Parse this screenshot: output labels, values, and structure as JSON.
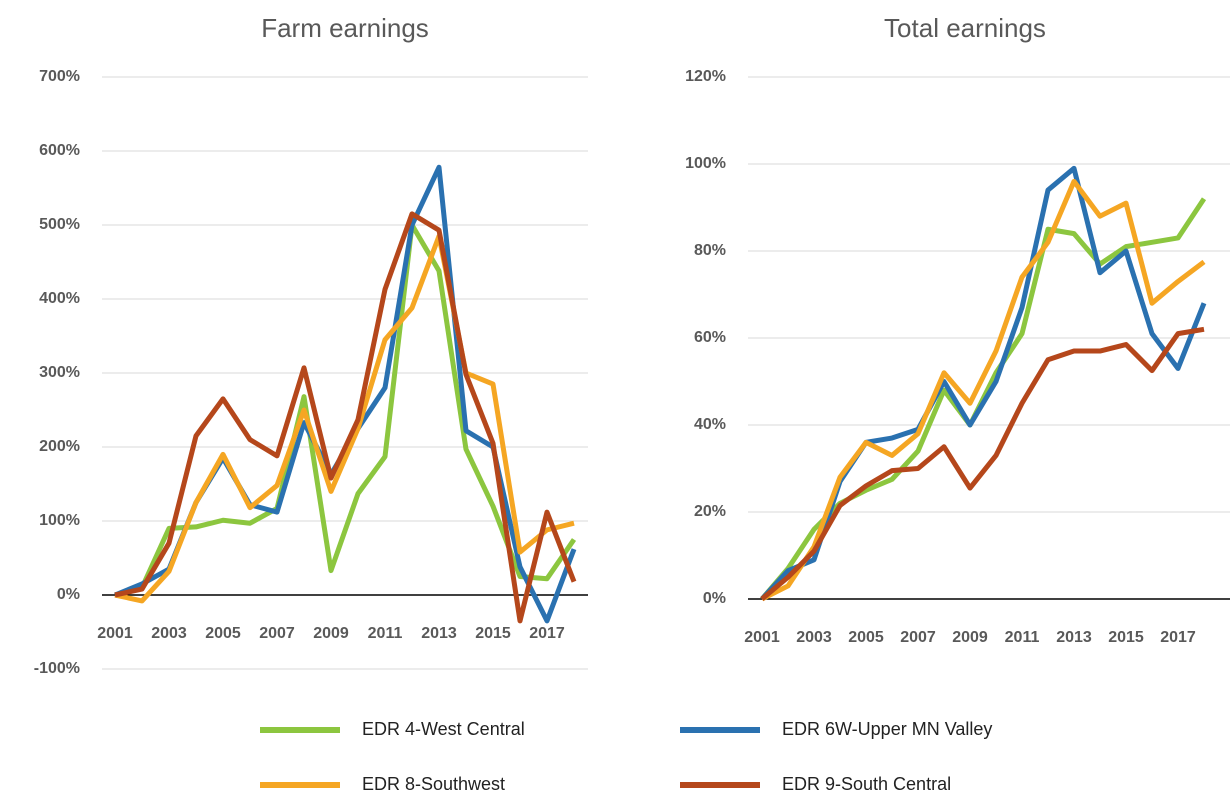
{
  "chart_data": [
    {
      "type": "line",
      "title": "Farm earnings",
      "categories": [
        2001,
        null,
        2003,
        null,
        2005,
        null,
        2007,
        null,
        2009,
        null,
        2011,
        null,
        2013,
        null,
        2015,
        null,
        2017,
        null
      ],
      "ylim": [
        -100,
        700
      ],
      "yticks": [
        {
          "value": -100,
          "label": "-100%"
        },
        {
          "value": 0,
          "label": "0%"
        },
        {
          "value": 100,
          "label": "100%"
        },
        {
          "value": 200,
          "label": "200%"
        },
        {
          "value": 300,
          "label": "300%"
        },
        {
          "value": 400,
          "label": "400%"
        },
        {
          "value": 500,
          "label": "500%"
        },
        {
          "value": 600,
          "label": "600%"
        },
        {
          "value": 700,
          "label": "700%"
        }
      ],
      "grid": true,
      "series": [
        {
          "name": "EDR 4-West Central",
          "color": "#8cc63f",
          "values": [
            0,
            10,
            90,
            92,
            101,
            97,
            117,
            268,
            33,
            137,
            187,
            500,
            438,
            197,
            120,
            25,
            22,
            75
          ]
        },
        {
          "name": "EDR 6W-Upper MN Valley",
          "color": "#2a71b0",
          "values": [
            0,
            15,
            35,
            125,
            185,
            122,
            112,
            233,
            163,
            225,
            280,
            500,
            578,
            222,
            200,
            38,
            -35,
            62
          ]
        },
        {
          "name": "EDR 8-Southwest",
          "color": "#f5a623",
          "values": [
            0,
            -8,
            32,
            125,
            190,
            118,
            148,
            250,
            140,
            225,
            345,
            388,
            485,
            300,
            285,
            58,
            88,
            97
          ]
        },
        {
          "name": "EDR 9-South Central",
          "color": "#b5471b",
          "values": [
            0,
            8,
            70,
            215,
            265,
            210,
            188,
            307,
            158,
            237,
            413,
            515,
            493,
            298,
            205,
            -35,
            112,
            18
          ]
        }
      ]
    },
    {
      "type": "line",
      "title": "Total earnings",
      "categories": [
        2001,
        null,
        2003,
        null,
        2005,
        null,
        2007,
        null,
        2009,
        null,
        2011,
        null,
        2013,
        null,
        2015,
        null,
        2017,
        null
      ],
      "ylim": [
        0,
        120
      ],
      "yticks": [
        {
          "value": 0,
          "label": "0%"
        },
        {
          "value": 20,
          "label": "20%"
        },
        {
          "value": 40,
          "label": "40%"
        },
        {
          "value": 60,
          "label": "60%"
        },
        {
          "value": 80,
          "label": "80%"
        },
        {
          "value": 100,
          "label": "100%"
        },
        {
          "value": 120,
          "label": "120%"
        }
      ],
      "grid": true,
      "series": [
        {
          "color": "#8cc63f",
          "values": [
            0,
            7,
            16,
            22,
            25,
            27.5,
            34,
            48,
            40,
            52,
            61,
            85,
            84,
            77,
            81,
            82,
            83,
            92
          ]
        },
        {
          "color": "#2a71b0",
          "values": [
            0,
            6.5,
            9,
            27,
            36,
            37,
            39,
            50,
            40,
            50,
            67,
            94,
            99,
            75,
            80,
            61,
            53,
            68
          ]
        },
        {
          "color": "#f5a623",
          "values": [
            0,
            3,
            12,
            28,
            36,
            33,
            38,
            52,
            45,
            57,
            74,
            82,
            96,
            88,
            91,
            68,
            73,
            77.5
          ]
        },
        {
          "color": "#b5471b",
          "values": [
            0,
            5,
            11,
            21.5,
            26,
            29.5,
            30,
            35,
            25.5,
            33,
            45,
            55,
            57,
            57,
            58.5,
            52.5,
            61,
            62
          ]
        }
      ]
    }
  ]
}
